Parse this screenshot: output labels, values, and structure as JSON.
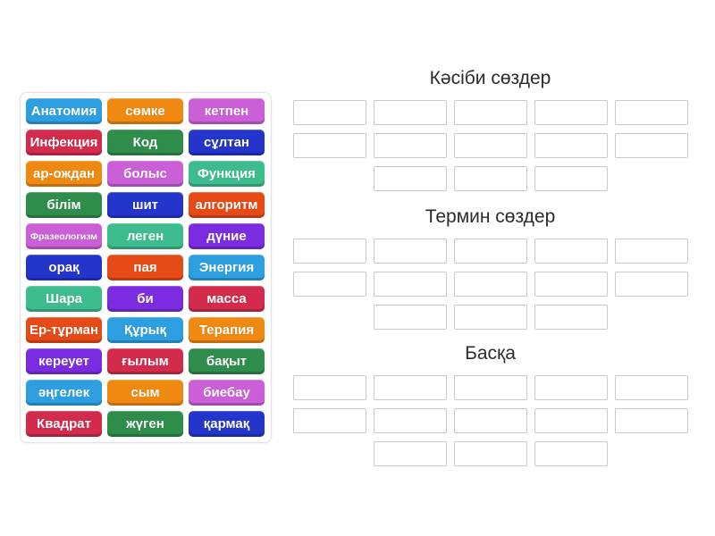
{
  "palette": {
    "lightblue": "#2d9fe0",
    "orange": "#ef8912",
    "orchid": "#ca5fd7",
    "crimson": "#d22b4b",
    "green": "#2f8d4c",
    "royal": "#2335cb",
    "emerald": "#3dbd8d",
    "vermilion": "#e54a17",
    "purple": "#7b2ce0"
  },
  "word_bank": {
    "tiles": [
      {
        "label": "Анатомия",
        "color": "lightblue"
      },
      {
        "label": "сөмке",
        "color": "orange"
      },
      {
        "label": "кетпен",
        "color": "orchid"
      },
      {
        "label": "Инфекция",
        "color": "crimson"
      },
      {
        "label": "Код",
        "color": "green"
      },
      {
        "label": "сұлтан",
        "color": "royal"
      },
      {
        "label": "ар-ождан",
        "color": "orange"
      },
      {
        "label": "болыс",
        "color": "orchid"
      },
      {
        "label": "Функция",
        "color": "emerald"
      },
      {
        "label": "білім",
        "color": "green"
      },
      {
        "label": "шит",
        "color": "royal"
      },
      {
        "label": "алгоритм",
        "color": "vermilion"
      },
      {
        "label": "Фразеологизм",
        "color": "orchid",
        "small": true
      },
      {
        "label": "леген",
        "color": "emerald"
      },
      {
        "label": "дүние",
        "color": "purple"
      },
      {
        "label": "орақ",
        "color": "royal"
      },
      {
        "label": "пая",
        "color": "vermilion"
      },
      {
        "label": "Энергия",
        "color": "lightblue"
      },
      {
        "label": "Шара",
        "color": "emerald"
      },
      {
        "label": "би",
        "color": "purple"
      },
      {
        "label": "масса",
        "color": "crimson"
      },
      {
        "label": "Ер-тұрман",
        "color": "vermilion"
      },
      {
        "label": "Құрық",
        "color": "lightblue"
      },
      {
        "label": "Терапия",
        "color": "orange"
      },
      {
        "label": "кереует",
        "color": "purple"
      },
      {
        "label": "ғылым",
        "color": "crimson"
      },
      {
        "label": "бақыт",
        "color": "green"
      },
      {
        "label": "әңгелек",
        "color": "lightblue"
      },
      {
        "label": "сым",
        "color": "orange"
      },
      {
        "label": "биебау",
        "color": "orchid"
      },
      {
        "label": "Квадрат",
        "color": "crimson"
      },
      {
        "label": "жүген",
        "color": "green"
      },
      {
        "label": "қармақ",
        "color": "royal"
      }
    ]
  },
  "groups": [
    {
      "title": "Кәсіби сөздер",
      "slot_count": 13,
      "slot_rows": [
        5,
        5,
        3
      ]
    },
    {
      "title": "Термин сөздер",
      "slot_count": 13,
      "slot_rows": [
        5,
        5,
        3
      ]
    },
    {
      "title": "Басқа",
      "slot_count": 13,
      "slot_rows": [
        5,
        5,
        3
      ]
    }
  ]
}
